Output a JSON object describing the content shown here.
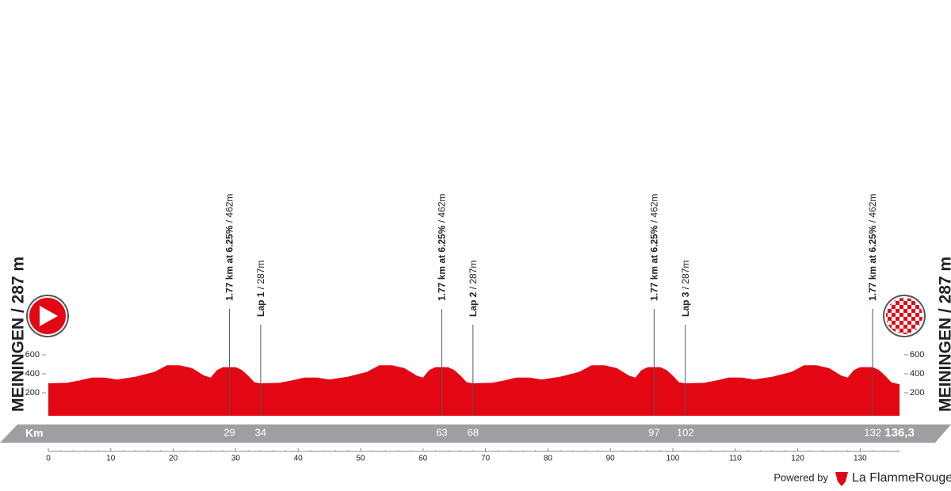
{
  "chart_data": {
    "type": "area",
    "place_label": "MEININGEN / 287 m",
    "x_axis_label": "Km",
    "x": [
      0,
      3,
      5,
      7,
      9,
      11,
      14,
      17,
      19,
      21,
      23,
      25,
      26,
      27,
      28,
      30,
      31,
      32,
      33,
      34,
      37,
      39,
      41,
      43,
      45,
      48,
      51,
      53,
      55,
      57,
      59,
      60,
      61,
      62,
      64,
      65,
      66,
      67,
      68,
      71,
      73,
      75,
      77,
      79,
      82,
      85,
      87,
      89,
      91,
      93,
      94,
      95,
      96,
      98,
      99,
      100,
      101,
      102,
      105,
      107,
      109,
      111,
      113,
      116,
      119,
      121,
      123,
      125,
      127,
      128,
      129,
      130,
      132,
      133,
      134,
      135,
      136.3
    ],
    "series": [
      {
        "color": "#e30613",
        "values": [
          300,
          305,
          330,
          360,
          360,
          340,
          370,
          420,
          490,
          490,
          460,
          380,
          360,
          440,
          470,
          470,
          440,
          380,
          310,
          300,
          305,
          330,
          360,
          360,
          340,
          370,
          420,
          490,
          490,
          460,
          380,
          360,
          440,
          470,
          470,
          440,
          380,
          310,
          300,
          305,
          330,
          360,
          360,
          340,
          370,
          420,
          490,
          490,
          460,
          380,
          360,
          440,
          470,
          470,
          440,
          380,
          310,
          300,
          305,
          330,
          360,
          360,
          340,
          370,
          420,
          490,
          490,
          460,
          380,
          360,
          440,
          470,
          470,
          440,
          380,
          310,
          290
        ]
      }
    ],
    "xlim": [
      0,
      136.3
    ],
    "xticks": [
      0,
      10,
      20,
      30,
      40,
      50,
      60,
      70,
      80,
      90,
      100,
      110,
      120,
      130
    ],
    "ylim": [
      0,
      600
    ],
    "yticks": [
      200,
      400,
      600
    ],
    "markers": [
      {
        "value": 29,
        "title": "1.77 km at 6.25%",
        "detail": " / 462m"
      },
      {
        "value": 34,
        "title": "Lap 1",
        "detail": " / 287m"
      },
      {
        "value": 63,
        "title": "1.77 km at 6.25%",
        "detail": " / 462m"
      },
      {
        "value": 68,
        "title": "Lap 2",
        "detail": " / 287m"
      },
      {
        "value": 97,
        "title": "1.77 km at 6.25%",
        "detail": " / 462m"
      },
      {
        "value": 102,
        "title": "Lap 3",
        "detail": " / 287m"
      },
      {
        "value": 132,
        "title": "1.77 km at 6.25%",
        "detail": " / 462m"
      }
    ],
    "finish": {
      "value": 136.3,
      "label": "136,3"
    },
    "footer": {
      "powered": "Powered by",
      "brand": "La FlammeRouge"
    }
  }
}
